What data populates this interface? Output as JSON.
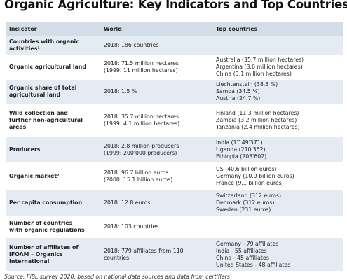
{
  "header": {
    "title": "Organic Agriculture: Key Indicators and Top Countries"
  },
  "table": {
    "columns": [
      "Indicator",
      "World",
      "Top countries"
    ],
    "rows": [
      [
        [
          "Countries with organic",
          "activities¹"
        ],
        [
          "2018: 186 countries"
        ],
        []
      ],
      [
        [
          "Organic agricultural land"
        ],
        [
          "2018: 71.5 million hectares",
          "(1999: 11 million hectares)"
        ],
        [
          "Australia (35.7 million hectares)",
          "Argentina (3.6 million hectares)",
          "China (3.1 million hectares)"
        ]
      ],
      [
        [
          "Organic share of total",
          "agricultural land"
        ],
        [
          "2018: 1.5 %"
        ],
        [
          "Liechtenstein (38.5 %)",
          "Samoa (34.5 %)",
          "Austria (24.7 %)"
        ]
      ],
      [
        [
          "Wild collection and",
          "further non-agricultural",
          "areas"
        ],
        [
          "2018: 35.7 million hectares",
          "(1999: 4.1 million hectares)"
        ],
        [
          "Finland (11.3 million hectares)",
          "Zambia (3.2 million hectares)",
          "Tanzania (2.4 million hectares)"
        ]
      ],
      [
        [
          "Producers"
        ],
        [
          "2018: 2.8 million producers",
          "(1999: 200'000 producers)"
        ],
        [
          "India (1'149'371)",
          "Uganda (210'352)",
          "Ethiopia (203'602)"
        ]
      ],
      [
        [
          "Organic market²"
        ],
        [
          "2018: 96.7 billion euros",
          "(2000: 15.1 billion euros)"
        ],
        [
          "US (40.6 billion euros)",
          "Germany (10.9 billion euros)",
          "France (9.1 billion euros)"
        ]
      ],
      [
        [
          "Per capita consumption"
        ],
        [
          "2018: 12.8 euros"
        ],
        [
          "Switzerland (312 euros)",
          "Denmark (312 euros)",
          "Sweden (231 euros)"
        ]
      ],
      [
        [
          "Number of countries",
          "with organic regulations"
        ],
        [
          "2018: 103 countries"
        ],
        []
      ],
      [
        [
          "Number of affiliates of",
          "IFOAM – Organics",
          "International"
        ],
        [
          "2018: 779 affiliates from 110",
          "countries"
        ],
        [
          "Germany - 79 affiliates",
          "India - 55 affiliates",
          "China - 45 affiliates",
          "United States - 48 affiliates"
        ]
      ]
    ]
  },
  "footer": {
    "source": "Source: FiBL survey 2020, based on national data sources and data from certifiers"
  }
}
